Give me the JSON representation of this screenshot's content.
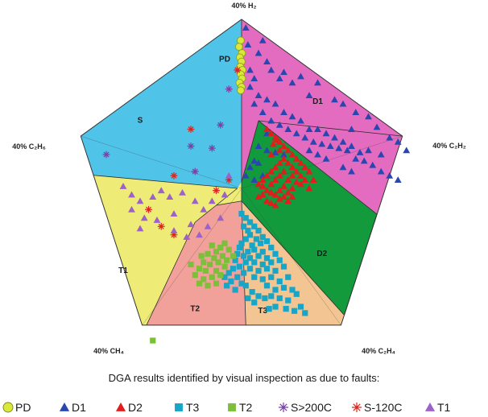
{
  "chart_data": {
    "type": "scatter",
    "title": "",
    "subtitle": "DGA results identified by visual inspection as due to faults:",
    "vertices": [
      {
        "key": "h2",
        "label": "40% H₂"
      },
      {
        "key": "c2h2",
        "label": "40% C₂H₂"
      },
      {
        "key": "c2h4",
        "label": "40% C₂H₄"
      },
      {
        "key": "ch4",
        "label": "40% CH₄"
      },
      {
        "key": "c2h6",
        "label": "40% C₂H₆"
      }
    ],
    "zones": [
      {
        "key": "PD",
        "label": "PD",
        "color": "#4fc3e8"
      },
      {
        "key": "S",
        "label": "S",
        "color": "#4fc3e8"
      },
      {
        "key": "D1",
        "label": "D1",
        "color": "#e46cc0"
      },
      {
        "key": "D2",
        "label": "D2",
        "color": "#129a3c"
      },
      {
        "key": "T3",
        "label": "T3",
        "color": "#f2c592"
      },
      {
        "key": "T2",
        "label": "T2",
        "color": "#f2a09a"
      },
      {
        "key": "T1",
        "label": "T1",
        "color": "#eeec76"
      }
    ],
    "series": [
      {
        "name": "PD",
        "marker": "circle",
        "color": "#d9e83a",
        "edge": "#8a9a10",
        "points": [
          [
            -0.2,
            35.0
          ],
          [
            -0.6,
            33.5
          ],
          [
            0.1,
            32.0
          ],
          [
            -0.4,
            31.0
          ],
          [
            0.0,
            30.0
          ],
          [
            -0.3,
            28.8
          ],
          [
            0.2,
            28.0
          ],
          [
            -0.2,
            27.0
          ],
          [
            0.1,
            26.0
          ],
          [
            -0.5,
            25.0
          ],
          [
            0.0,
            24.0
          ],
          [
            -0.2,
            23.2
          ]
        ]
      },
      {
        "name": "D1",
        "marker": "triangle",
        "color": "#2a47b0",
        "points": [
          [
            1.0,
            38.0
          ],
          [
            1.5,
            34.0
          ],
          [
            2.0,
            28.0
          ],
          [
            3.0,
            26.0
          ],
          [
            4.0,
            32.0
          ],
          [
            5.0,
            35.0
          ],
          [
            6.0,
            30.0
          ],
          [
            7.0,
            28.0
          ],
          [
            9.0,
            26.0
          ],
          [
            10.0,
            27.5
          ],
          [
            12.0,
            25.0
          ],
          [
            14.0,
            26.5
          ],
          [
            16.0,
            22.0
          ],
          [
            18.0,
            25.0
          ],
          [
            22.0,
            21.0
          ],
          [
            24.0,
            20.0
          ],
          [
            26.0,
            14.0
          ],
          [
            27.0,
            18.0
          ],
          [
            30.0,
            17.0
          ],
          [
            32.0,
            14.5
          ],
          [
            35.0,
            12.0
          ],
          [
            37.0,
            11.0
          ],
          [
            39.0,
            9.0
          ],
          [
            33.0,
            8.0
          ],
          [
            30.0,
            9.0
          ],
          [
            28.0,
            8.5
          ],
          [
            26.0,
            10.0
          ],
          [
            24.0,
            11.0
          ],
          [
            22.0,
            12.0
          ],
          [
            20.0,
            13.0
          ],
          [
            18.0,
            14.0
          ],
          [
            16.0,
            14.0
          ],
          [
            14.0,
            16.0
          ],
          [
            12.0,
            17.0
          ],
          [
            10.0,
            18.0
          ],
          [
            8.0,
            20.0
          ],
          [
            6.0,
            21.0
          ],
          [
            4.0,
            22.0
          ],
          [
            2.0,
            24.0
          ],
          [
            3.0,
            20.0
          ],
          [
            5.0,
            18.0
          ],
          [
            7.0,
            16.0
          ],
          [
            9.0,
            15.0
          ],
          [
            11.0,
            14.0
          ],
          [
            13.0,
            13.0
          ],
          [
            15.0,
            12.0
          ],
          [
            17.0,
            11.0
          ],
          [
            19.0,
            10.5
          ],
          [
            21.0,
            10.0
          ],
          [
            23.0,
            9.5
          ],
          [
            25.0,
            9.0
          ],
          [
            27.0,
            7.0
          ],
          [
            29.0,
            6.5
          ],
          [
            31.0,
            5.5
          ],
          [
            33.0,
            4.0
          ],
          [
            35.0,
            3.0
          ],
          [
            37.0,
            2.0
          ],
          [
            26.0,
            4.0
          ],
          [
            24.0,
            5.0
          ],
          [
            20.0,
            7.0
          ],
          [
            18.0,
            8.0
          ],
          [
            16.0,
            9.0
          ],
          [
            8.0,
            12.0
          ],
          [
            6.0,
            13.0
          ],
          [
            10.0,
            8.0
          ],
          [
            8.0,
            8.5
          ],
          [
            6.0,
            9.0
          ],
          [
            4.0,
            10.0
          ],
          [
            4.0,
            6.0
          ],
          [
            3.0,
            6.5
          ],
          [
            2.0,
            5.0
          ],
          [
            1.0,
            3.0
          ],
          [
            3.0,
            2.0
          ],
          [
            5.0,
            3.0
          ]
        ]
      },
      {
        "name": "D2",
        "marker": "triangle",
        "color": "#e31c1c",
        "points": [
          [
            6.0,
            14.0
          ],
          [
            7.0,
            13.0
          ],
          [
            8.0,
            12.0
          ],
          [
            7.5,
            10.5
          ],
          [
            8.5,
            11.5
          ],
          [
            9.0,
            11.0
          ],
          [
            10.0,
            10.0
          ],
          [
            9.0,
            9.0
          ],
          [
            11.0,
            9.0
          ],
          [
            12.0,
            8.0
          ],
          [
            7.0,
            8.0
          ],
          [
            10.0,
            7.0
          ],
          [
            13.0,
            7.0
          ],
          [
            9.0,
            6.0
          ],
          [
            11.0,
            6.0
          ],
          [
            14.0,
            6.0
          ],
          [
            8.0,
            5.0
          ],
          [
            12.0,
            5.0
          ],
          [
            15.0,
            5.0
          ],
          [
            7.0,
            4.0
          ],
          [
            10.0,
            4.0
          ],
          [
            13.0,
            4.0
          ],
          [
            16.0,
            4.0
          ],
          [
            6.0,
            3.0
          ],
          [
            9.0,
            3.0
          ],
          [
            12.0,
            3.0
          ],
          [
            14.0,
            3.0
          ],
          [
            5.0,
            2.0
          ],
          [
            8.0,
            2.0
          ],
          [
            11.0,
            2.0
          ],
          [
            13.0,
            1.5
          ],
          [
            4.0,
            1.0
          ],
          [
            7.0,
            1.0
          ],
          [
            10.0,
            0.5
          ],
          [
            12.0,
            0.0
          ],
          [
            5.0,
            0.5
          ],
          [
            9.0,
            -0.5
          ],
          [
            11.0,
            -1.0
          ],
          [
            6.0,
            -0.5
          ],
          [
            8.0,
            -1.5
          ],
          [
            10.0,
            -2.0
          ],
          [
            7.0,
            -1.0
          ],
          [
            9.0,
            -2.5
          ],
          [
            5.0,
            -1.5
          ],
          [
            6.0,
            -3.0
          ],
          [
            12.0,
            -2.0
          ],
          [
            7.0,
            -3.5
          ],
          [
            4.0,
            -2.0
          ],
          [
            8.0,
            -4.0
          ],
          [
            14.0,
            1.0
          ],
          [
            15.0,
            2.0
          ],
          [
            11.0,
            -3.0
          ],
          [
            16.0,
            0.0
          ],
          [
            17.0,
            2.0
          ]
        ]
      },
      {
        "name": "T3",
        "marker": "square",
        "color": "#17a6c7",
        "points": [
          [
            0.0,
            -6.0
          ],
          [
            1.0,
            -7.0
          ],
          [
            2.0,
            -8.0
          ],
          [
            0.5,
            -9.0
          ],
          [
            1.5,
            -10.0
          ],
          [
            3.0,
            -9.0
          ],
          [
            4.0,
            -10.0
          ],
          [
            2.0,
            -11.0
          ],
          [
            3.5,
            -12.0
          ],
          [
            5.0,
            -11.5
          ],
          [
            1.0,
            -12.0
          ],
          [
            0.0,
            -13.0
          ],
          [
            2.5,
            -13.5
          ],
          [
            4.5,
            -13.0
          ],
          [
            6.0,
            -12.5
          ],
          [
            3.0,
            -14.5
          ],
          [
            1.5,
            -15.0
          ],
          [
            5.0,
            -15.0
          ],
          [
            7.0,
            -14.0
          ],
          [
            -0.5,
            -14.0
          ],
          [
            0.5,
            -16.0
          ],
          [
            2.0,
            -16.5
          ],
          [
            4.0,
            -16.0
          ],
          [
            6.0,
            -16.5
          ],
          [
            8.0,
            -15.5
          ],
          [
            3.0,
            -17.5
          ],
          [
            5.0,
            -18.0
          ],
          [
            7.0,
            -17.5
          ],
          [
            9.0,
            -17.0
          ],
          [
            1.0,
            -17.5
          ],
          [
            2.0,
            -19.0
          ],
          [
            4.0,
            -19.5
          ],
          [
            6.0,
            -19.0
          ],
          [
            8.0,
            -19.5
          ],
          [
            10.0,
            -18.5
          ],
          [
            3.0,
            -21.0
          ],
          [
            5.0,
            -21.5
          ],
          [
            7.0,
            -21.0
          ],
          [
            9.0,
            -22.0
          ],
          [
            11.0,
            -21.0
          ],
          [
            6.0,
            -23.0
          ],
          [
            8.0,
            -24.0
          ],
          [
            10.0,
            -23.5
          ],
          [
            12.0,
            -24.0
          ],
          [
            7.0,
            -25.5
          ],
          [
            9.0,
            -26.0
          ],
          [
            11.0,
            -26.5
          ],
          [
            13.0,
            -25.0
          ],
          [
            -1.0,
            -15.5
          ],
          [
            -1.5,
            -17.0
          ],
          [
            -0.5,
            -18.5
          ],
          [
            0.5,
            -20.0
          ],
          [
            -2.0,
            -19.0
          ],
          [
            -1.0,
            -21.0
          ],
          [
            0.0,
            -22.5
          ],
          [
            1.0,
            -23.0
          ],
          [
            -3.0,
            -20.0
          ],
          [
            -2.5,
            -22.0
          ],
          [
            -4.0,
            -21.0
          ],
          [
            -3.5,
            -23.0
          ],
          [
            -1.5,
            -24.0
          ],
          [
            2.5,
            -24.5
          ],
          [
            4.0,
            -25.5
          ],
          [
            5.5,
            -26.0
          ],
          [
            10.5,
            -28.5
          ],
          [
            12.5,
            -29.0
          ],
          [
            8.0,
            -28.0
          ],
          [
            6.5,
            -28.5
          ],
          [
            14.0,
            -28.0
          ],
          [
            15.0,
            -29.5
          ],
          [
            3.0,
            -27.0
          ],
          [
            1.5,
            -26.0
          ]
        ]
      },
      {
        "name": "T2",
        "marker": "square",
        "color": "#7cbf3a",
        "points": [
          [
            -4.0,
            -13.0
          ],
          [
            -5.0,
            -14.0
          ],
          [
            -6.0,
            -15.0
          ],
          [
            -4.5,
            -16.0
          ],
          [
            -6.5,
            -16.5
          ],
          [
            -8.0,
            -15.5
          ],
          [
            -5.5,
            -17.5
          ],
          [
            -7.5,
            -18.0
          ],
          [
            -9.0,
            -17.5
          ],
          [
            -4.0,
            -18.5
          ],
          [
            -6.0,
            -19.5
          ],
          [
            -8.5,
            -19.5
          ],
          [
            -10.0,
            -19.0
          ],
          [
            -5.0,
            -20.5
          ],
          [
            -7.0,
            -21.0
          ],
          [
            -9.0,
            -21.5
          ],
          [
            -11.0,
            -20.5
          ],
          [
            -6.0,
            -22.5
          ],
          [
            -8.0,
            -23.0
          ],
          [
            -10.0,
            -22.5
          ],
          [
            -3.0,
            -14.5
          ],
          [
            -2.0,
            -16.0
          ],
          [
            -3.5,
            -17.0
          ],
          [
            -7.0,
            -13.5
          ],
          [
            -9.5,
            -16.0
          ],
          [
            -12.0,
            -18.0
          ],
          [
            -21.0,
            -36.0
          ]
        ]
      },
      {
        "name": "S>200C",
        "marker": "star",
        "color": "#7b3fa6",
        "points": [
          [
            -3.0,
            23.5
          ],
          [
            -5.0,
            15.0
          ],
          [
            -7.0,
            9.5
          ],
          [
            -11.0,
            4.0
          ],
          [
            -12.0,
            10.0
          ],
          [
            -32.0,
            8.0
          ]
        ]
      },
      {
        "name": "S-120C",
        "marker": "star",
        "color": "#d9251d",
        "points": [
          [
            -1.0,
            28.0
          ],
          [
            -12.0,
            14.0
          ],
          [
            -3.0,
            2.0
          ],
          [
            -6.0,
            -0.5
          ],
          [
            -16.0,
            3.0
          ],
          [
            -22.0,
            -5.0
          ],
          [
            -19.0,
            -9.0
          ],
          [
            -16.0,
            -11.0
          ]
        ]
      },
      {
        "name": "T1",
        "marker": "triangle",
        "color": "#9d62c8",
        "points": [
          [
            -28.0,
            0.5
          ],
          [
            -26.0,
            -1.5
          ],
          [
            -24.0,
            -3.0
          ],
          [
            -21.0,
            -2.0
          ],
          [
            -19.0,
            -0.5
          ],
          [
            -17.0,
            -2.0
          ],
          [
            -26.0,
            -5.0
          ],
          [
            -23.0,
            -7.0
          ],
          [
            -20.0,
            -7.5
          ],
          [
            -16.0,
            -6.0
          ],
          [
            -14.0,
            -1.0
          ],
          [
            -11.0,
            -3.0
          ],
          [
            -12.0,
            -8.5
          ],
          [
            -9.0,
            -5.0
          ],
          [
            -7.0,
            -3.0
          ],
          [
            -13.0,
            -11.5
          ],
          [
            -16.0,
            -10.0
          ],
          [
            -24.0,
            -9.5
          ],
          [
            -10.0,
            -11.0
          ],
          [
            -5.0,
            -7.0
          ],
          [
            -4.0,
            -1.5
          ],
          [
            -3.0,
            3.0
          ],
          [
            -8.0,
            -9.0
          ]
        ]
      }
    ],
    "legend": {
      "position": "bottom",
      "items": [
        {
          "label": "PD",
          "marker": "circle",
          "color": "#d9e83a"
        },
        {
          "label": "D1",
          "marker": "triangle",
          "color": "#2a47b0"
        },
        {
          "label": "D2",
          "marker": "triangle",
          "color": "#e31c1c"
        },
        {
          "label": "T3",
          "marker": "square",
          "color": "#17a6c7"
        },
        {
          "label": "T2",
          "marker": "square",
          "color": "#7cbf3a"
        },
        {
          "label": "S>200C",
          "marker": "star",
          "color": "#7b3fa6"
        },
        {
          "label": "S-120C",
          "marker": "star",
          "color": "#d9251d"
        },
        {
          "label": "T1",
          "marker": "triangle",
          "color": "#9d62c8"
        }
      ]
    }
  }
}
